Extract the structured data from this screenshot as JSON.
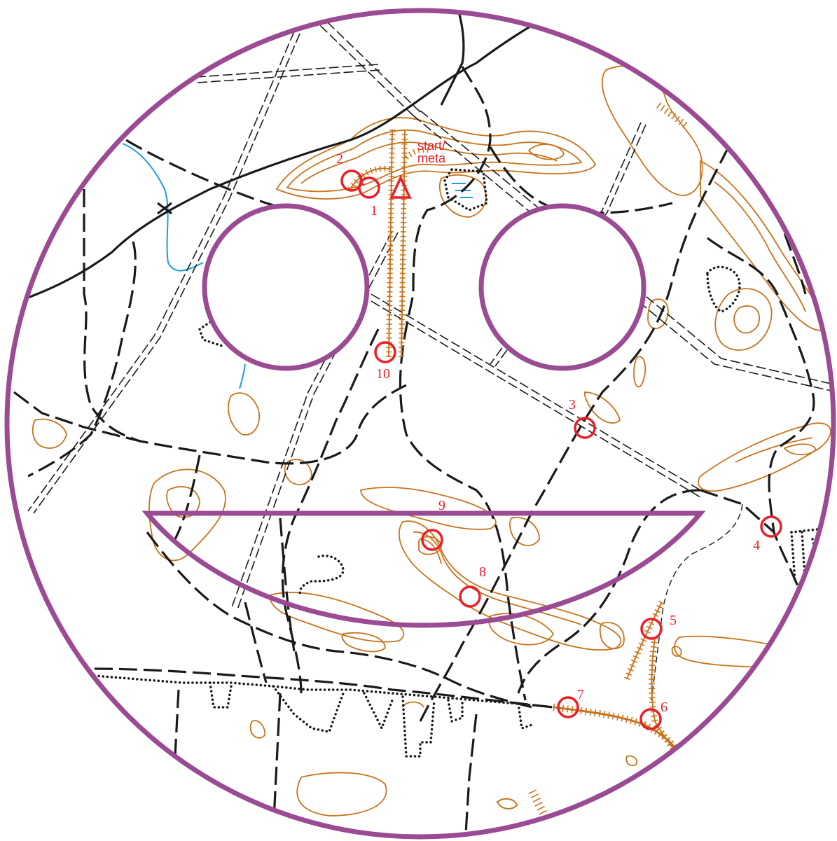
{
  "map": {
    "colors": {
      "course": "#e8202a",
      "contour": "#c8741c",
      "track": "#1a1a1a",
      "water": "#1a9fd9",
      "frame": "#9b4a94"
    },
    "start_label_line1": "start/",
    "start_label_line2": "meta",
    "controls": [
      {
        "number": "1"
      },
      {
        "number": "2"
      },
      {
        "number": "3"
      },
      {
        "number": "4"
      },
      {
        "number": "5"
      },
      {
        "number": "6"
      },
      {
        "number": "7"
      },
      {
        "number": "8"
      },
      {
        "number": "9"
      },
      {
        "number": "10"
      }
    ],
    "icons": [
      "start-triangle-icon",
      "control-circle-icon",
      "smiley-frame-icon"
    ]
  }
}
